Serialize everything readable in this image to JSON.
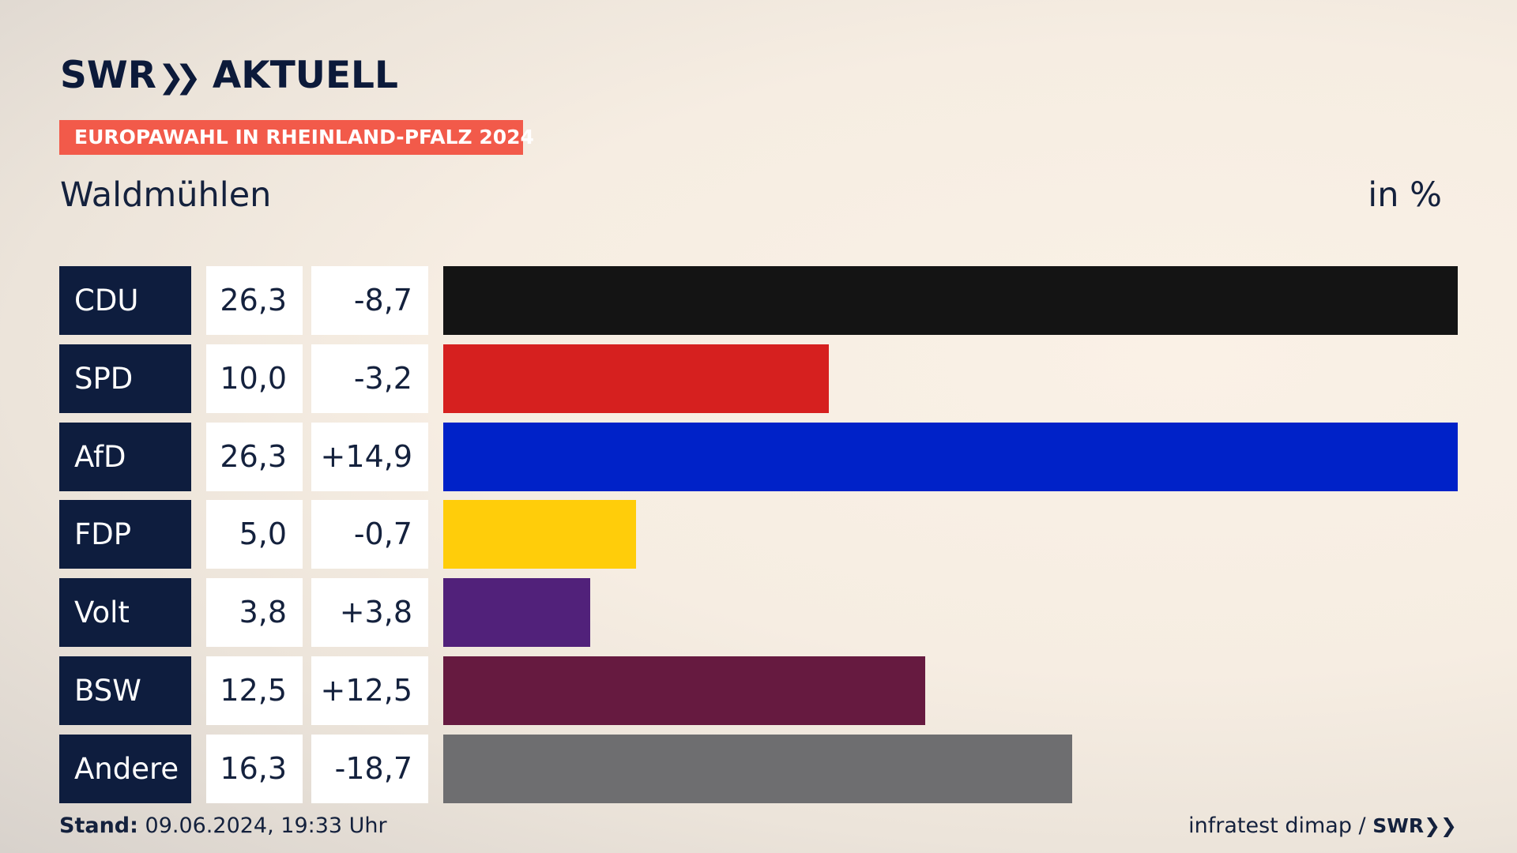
{
  "header": {
    "logo_swr": "SWR",
    "logo_word": "AKTUELL",
    "badge": "EUROPAWAHL IN RHEINLAND-PFALZ 2024",
    "subtitle": "Waldmühlen",
    "unit": "in %"
  },
  "chart_data": {
    "type": "bar",
    "orientation": "horizontal",
    "categories": [
      "CDU",
      "SPD",
      "AfD",
      "FDP",
      "Volt",
      "BSW",
      "Andere"
    ],
    "values": [
      26.3,
      10.0,
      26.3,
      5.0,
      3.8,
      12.5,
      16.3
    ],
    "value_labels": [
      "26,3",
      "10,0",
      "26,3",
      "5,0",
      "3,8",
      "12,5",
      "16,3"
    ],
    "diff_labels": [
      "-8,7",
      "-3,2",
      "+14,9",
      "-0,7",
      "+3,8",
      "+12,5",
      "-18,7"
    ],
    "colors": [
      "#141414",
      "#d6201f",
      "#0022c8",
      "#ffcd0a",
      "#51217a",
      "#661a40",
      "#6e6e70"
    ],
    "title": "Waldmühlen",
    "unit": "in %"
  },
  "footer": {
    "stand_label": "Stand:",
    "stand_value": "09.06.2024, 19:33 Uhr",
    "source": "infratest dimap /",
    "source_logo": "SWR"
  }
}
